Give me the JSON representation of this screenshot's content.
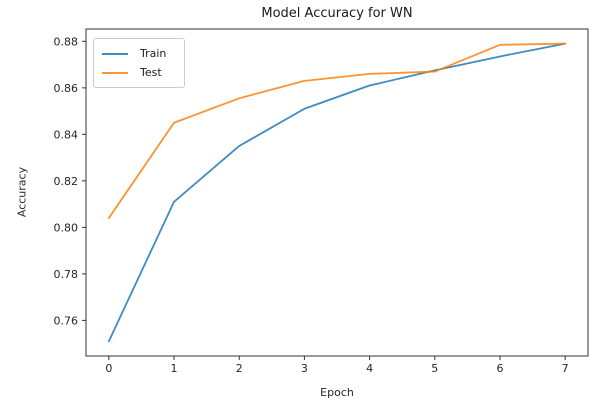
{
  "chart_data": {
    "type": "line",
    "title": "Model Accuracy for WN",
    "xlabel": "Epoch",
    "ylabel": "Accuracy",
    "x": [
      0,
      1,
      2,
      3,
      4,
      5,
      6,
      7
    ],
    "series": [
      {
        "name": "Train",
        "color": "#1f77b4",
        "values": [
          0.751,
          0.811,
          0.835,
          0.851,
          0.861,
          0.8675,
          0.8735,
          0.879
        ]
      },
      {
        "name": "Test",
        "color": "#ff7f0e",
        "values": [
          0.804,
          0.845,
          0.8555,
          0.863,
          0.866,
          0.867,
          0.8785,
          0.879
        ]
      }
    ],
    "xlim": [
      -0.35,
      7.35
    ],
    "ylim": [
      0.7447,
      0.8853
    ],
    "xticks": {
      "values": [
        0,
        1,
        2,
        3,
        4,
        5,
        6,
        7
      ],
      "labels": [
        "0",
        "1",
        "2",
        "3",
        "4",
        "5",
        "6",
        "7"
      ]
    },
    "yticks": {
      "values": [
        0.76,
        0.78,
        0.8,
        0.82,
        0.84,
        0.86,
        0.88
      ],
      "labels": [
        "0.76",
        "0.78",
        "0.80",
        "0.82",
        "0.84",
        "0.86",
        "0.88"
      ]
    },
    "legend": {
      "position": "upper left",
      "entries": [
        "Train",
        "Test"
      ]
    },
    "grid": false,
    "line_opacity": 0.85,
    "axis_color": "#333333",
    "tick_label_color": "#262626"
  }
}
